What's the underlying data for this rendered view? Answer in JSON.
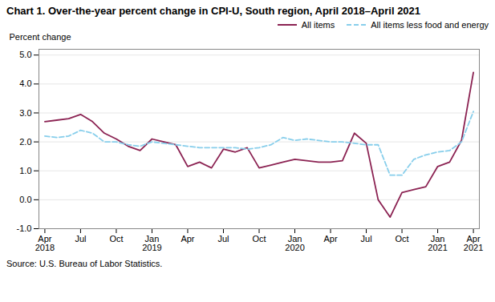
{
  "chart_data": {
    "type": "line",
    "title": "Chart 1. Over-the-year percent change in CPI-U, South region, April 2018–April 2021",
    "ylabel": "Percent change",
    "caption": "Source: U.S. Bureau of Labor Statistics.",
    "categories": [
      "Apr\n2018",
      null,
      null,
      "Jul",
      null,
      null,
      "Oct",
      null,
      null,
      "Jan\n2019",
      null,
      null,
      "Apr",
      null,
      null,
      "Jul",
      null,
      null,
      "Oct",
      null,
      null,
      "Jan\n2020",
      null,
      null,
      "Apr",
      null,
      null,
      "Jul",
      null,
      null,
      "Oct",
      null,
      null,
      "Jan\n2021",
      null,
      null,
      "Apr\n2021"
    ],
    "series": [
      {
        "name": "All items",
        "color": "#8B2252",
        "line_style": "solid",
        "values": [
          2.7,
          2.75,
          2.8,
          2.95,
          2.7,
          2.3,
          2.1,
          1.85,
          1.7,
          2.1,
          2.0,
          1.9,
          1.15,
          1.3,
          1.1,
          1.75,
          1.65,
          1.8,
          1.1,
          1.2,
          1.3,
          1.4,
          1.35,
          1.3,
          1.3,
          1.35,
          2.3,
          1.95,
          0.0,
          -0.6,
          0.25,
          0.35,
          0.45,
          1.15,
          1.3,
          2.05,
          4.4
        ]
      },
      {
        "name": "All items less food and energy",
        "color": "#87CEEB",
        "line_style": "dashed",
        "values": [
          2.2,
          2.15,
          2.2,
          2.4,
          2.3,
          2.0,
          2.0,
          1.9,
          1.85,
          2.0,
          1.95,
          1.9,
          1.85,
          1.8,
          1.8,
          1.8,
          1.8,
          1.75,
          1.8,
          1.9,
          2.15,
          2.05,
          2.1,
          2.05,
          2.0,
          2.0,
          1.95,
          1.9,
          1.9,
          0.85,
          0.85,
          1.4,
          1.55,
          1.65,
          1.7,
          2.0,
          3.05
        ]
      }
    ],
    "ylim": [
      -1.0,
      5.2
    ],
    "yticks": [
      {
        "value": -1.0,
        "label": "-1.0"
      },
      {
        "value": 0.0,
        "label": "0.0"
      },
      {
        "value": 1.0,
        "label": "1.0"
      },
      {
        "value": 2.0,
        "label": "2.0"
      },
      {
        "value": 3.0,
        "label": "3.0"
      },
      {
        "value": 4.0,
        "label": "4.0"
      },
      {
        "value": 5.0,
        "label": "5.0"
      }
    ],
    "grid": true,
    "legend": "upper right"
  }
}
